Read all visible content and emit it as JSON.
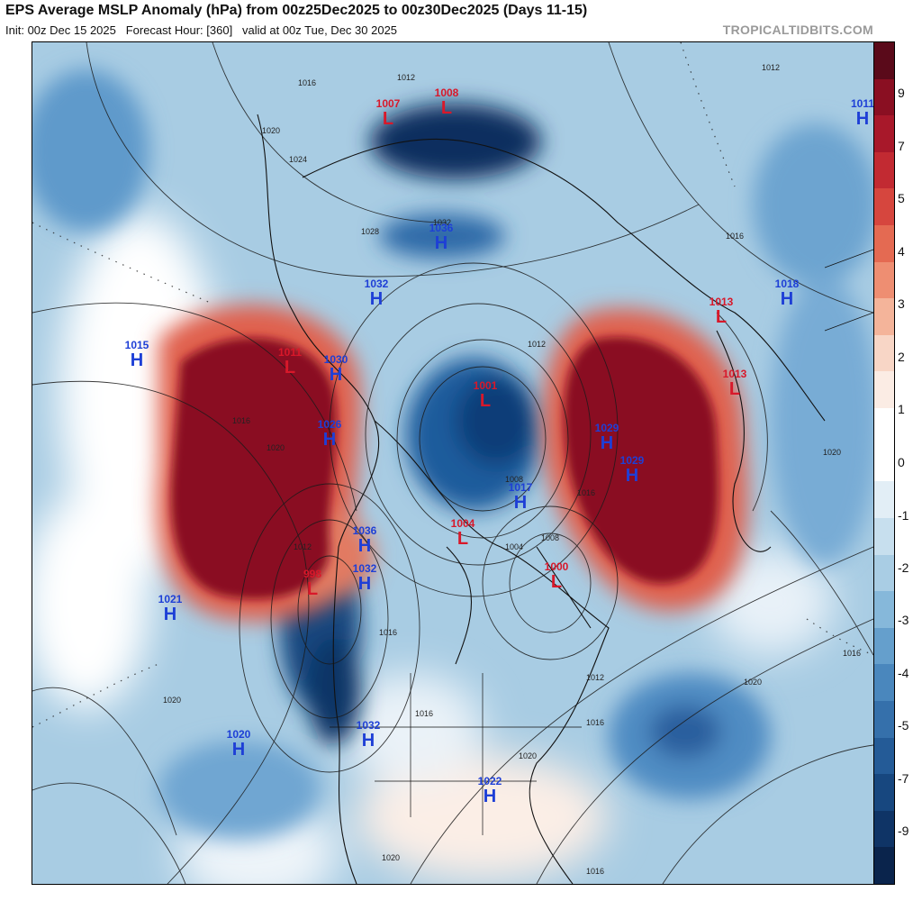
{
  "header": {
    "title": "EPS Average MSLP Anomaly (hPa) from 00z25Dec2025 to 00z30Dec2025 (Days 11-15)",
    "subtitle": "Init: 00z Dec 15 2025   Forecast Hour: [360]   valid at 00z Tue, Dec 30 2025",
    "credit": "TROPICALTIDBITS.COM"
  },
  "colorbar": {
    "tick_labels": [
      "9",
      "7",
      "5",
      "4",
      "3",
      "2",
      "1",
      "0",
      "-1",
      "-2",
      "-3",
      "-4",
      "-5",
      "-7",
      "-9"
    ],
    "colors": [
      "#5a0a1a",
      "#8a0f22",
      "#a8182a",
      "#c22a32",
      "#d6463e",
      "#e46a52",
      "#ee8e72",
      "#f4b49a",
      "#f8d6c6",
      "#fbece4",
      "#ffffff",
      "#ffffff",
      "#e2eef6",
      "#c7dfee",
      "#a9cde4",
      "#86b8da",
      "#659fcc",
      "#4a87bd",
      "#3570ab",
      "#245b97",
      "#17477f",
      "#0f3466",
      "#0a244c"
    ],
    "positive_color": "#8b0e24",
    "negative_color": "#1b4f8c"
  },
  "pressure_centers": [
    {
      "type": "L",
      "value": "1007"
    },
    {
      "type": "L",
      "value": "1008"
    },
    {
      "type": "H",
      "value": "1011"
    },
    {
      "type": "H",
      "value": "1036"
    },
    {
      "type": "H",
      "value": "1032"
    },
    {
      "type": "L",
      "value": "1013"
    },
    {
      "type": "H",
      "value": "1018"
    },
    {
      "type": "H",
      "value": "1015"
    },
    {
      "type": "L",
      "value": "1011"
    },
    {
      "type": "H",
      "value": "1030"
    },
    {
      "type": "L",
      "value": "1001"
    },
    {
      "type": "L",
      "value": "1013"
    },
    {
      "type": "H",
      "value": "1026"
    },
    {
      "type": "H",
      "value": "1029"
    },
    {
      "type": "H",
      "value": "1029"
    },
    {
      "type": "H",
      "value": "1017"
    },
    {
      "type": "H",
      "value": "1036"
    },
    {
      "type": "L",
      "value": "1004"
    },
    {
      "type": "H",
      "value": "1032"
    },
    {
      "type": "L",
      "value": "998"
    },
    {
      "type": "L",
      "value": "1000"
    },
    {
      "type": "H",
      "value": "1021"
    },
    {
      "type": "H",
      "value": "1020"
    },
    {
      "type": "H",
      "value": "1032"
    },
    {
      "type": "H",
      "value": "1022"
    }
  ],
  "isobar_labels": [
    "1012",
    "1016",
    "1020",
    "1024",
    "1028",
    "1032",
    "1016",
    "1020",
    "1012",
    "1008",
    "1004",
    "1008",
    "1012",
    "1016",
    "1020",
    "1016",
    "1012",
    "1016",
    "1020",
    "1020",
    "1012",
    "1016",
    "1016",
    "1016",
    "1020",
    "1020",
    "1016"
  ]
}
